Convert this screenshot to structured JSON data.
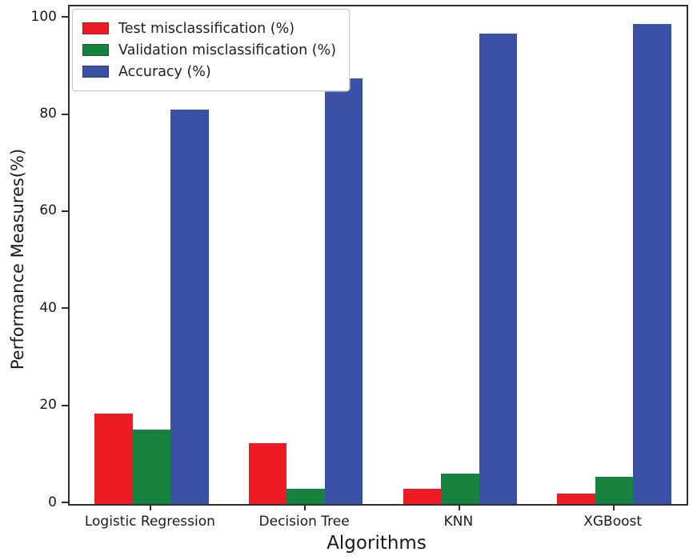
{
  "chart_data": {
    "type": "bar",
    "title": "",
    "xlabel": "Algorithms",
    "ylabel": "Performance Measures(%)",
    "categories": [
      "Logistic Regression",
      "Decision Tree",
      "KNN",
      "XGBoost"
    ],
    "series": [
      {
        "name": "Test misclassification (%)",
        "color": "#ed1c24",
        "values": [
          18.7,
          12.6,
          3.1,
          2.2
        ]
      },
      {
        "name": "Validation misclassification (%)",
        "color": "#17813f",
        "values": [
          15.4,
          3.1,
          6.2,
          5.6
        ]
      },
      {
        "name": "Accuracy (%)",
        "color": "#3b51a5",
        "values": [
          81.3,
          87.6,
          96.9,
          98.8
        ]
      }
    ],
    "yticks": [
      0,
      20,
      40,
      60,
      80,
      100
    ],
    "ylim": [
      0,
      102.5
    ],
    "grid": false,
    "legend_position": "upper left"
  }
}
